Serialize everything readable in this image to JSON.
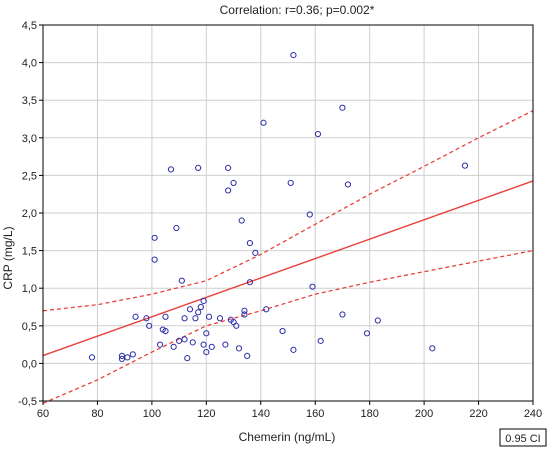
{
  "chart_data": {
    "type": "scatter",
    "title": "Correlation:  r=0.36; p=0.002*",
    "xlabel": "Chemerin  (ng/mL)",
    "ylabel": "CRP (mg/L)",
    "xlim": [
      60,
      240
    ],
    "ylim": [
      -0.5,
      4.5
    ],
    "x_ticks": [
      60,
      80,
      100,
      120,
      140,
      160,
      180,
      200,
      220,
      240
    ],
    "y_ticks": [
      -0.5,
      0.0,
      0.5,
      1.0,
      1.5,
      2.0,
      2.5,
      3.0,
      3.5,
      4.0,
      4.5
    ],
    "x_tick_labels": [
      "60",
      "80",
      "100",
      "120",
      "140",
      "160",
      "180",
      "200",
      "220",
      "240"
    ],
    "y_tick_labels": [
      "-0,5",
      "0,0",
      "0,5",
      "1,0",
      "1,5",
      "2,0",
      "2,5",
      "3,0",
      "3,5",
      "4,0",
      "4,5"
    ],
    "grid": true,
    "legend": "0.95 CI",
    "colors": {
      "points": "#2b2fa8",
      "fit": "#e8413c",
      "grid": "#cfcfcf",
      "frame": "#000000"
    },
    "regression": {
      "intercept": -0.67,
      "slope": 0.0129
    },
    "confidence_band": {
      "x": [
        60,
        80,
        100,
        120,
        140,
        160,
        180,
        200,
        220,
        240
      ],
      "upper": [
        0.7,
        0.78,
        0.92,
        1.1,
        1.45,
        1.85,
        2.25,
        2.62,
        3.0,
        3.36
      ],
      "lower": [
        -0.53,
        -0.22,
        0.15,
        0.5,
        0.7,
        0.92,
        1.08,
        1.22,
        1.36,
        1.5
      ]
    },
    "points": [
      {
        "x": 78,
        "y": 0.08
      },
      {
        "x": 89,
        "y": 0.1
      },
      {
        "x": 89,
        "y": 0.06
      },
      {
        "x": 91,
        "y": 0.08
      },
      {
        "x": 93,
        "y": 0.12
      },
      {
        "x": 94,
        "y": 0.62
      },
      {
        "x": 98,
        "y": 0.6
      },
      {
        "x": 99,
        "y": 0.5
      },
      {
        "x": 101,
        "y": 1.38
      },
      {
        "x": 101,
        "y": 1.67
      },
      {
        "x": 103,
        "y": 0.25
      },
      {
        "x": 104,
        "y": 0.45
      },
      {
        "x": 105,
        "y": 0.43
      },
      {
        "x": 105,
        "y": 0.62
      },
      {
        "x": 107,
        "y": 2.58
      },
      {
        "x": 108,
        "y": 0.22
      },
      {
        "x": 109,
        "y": 1.8
      },
      {
        "x": 110,
        "y": 0.3
      },
      {
        "x": 111,
        "y": 1.1
      },
      {
        "x": 112,
        "y": 0.32
      },
      {
        "x": 112,
        "y": 0.6
      },
      {
        "x": 113,
        "y": 0.07
      },
      {
        "x": 114,
        "y": 0.72
      },
      {
        "x": 115,
        "y": 0.28
      },
      {
        "x": 116,
        "y": 0.6
      },
      {
        "x": 117,
        "y": 2.6
      },
      {
        "x": 117,
        "y": 0.68
      },
      {
        "x": 118,
        "y": 0.75
      },
      {
        "x": 119,
        "y": 0.83
      },
      {
        "x": 119,
        "y": 0.25
      },
      {
        "x": 120,
        "y": 0.4
      },
      {
        "x": 120,
        "y": 0.15
      },
      {
        "x": 121,
        "y": 0.62
      },
      {
        "x": 122,
        "y": 0.22
      },
      {
        "x": 125,
        "y": 0.6
      },
      {
        "x": 127,
        "y": 0.25
      },
      {
        "x": 128,
        "y": 2.6
      },
      {
        "x": 128,
        "y": 2.3
      },
      {
        "x": 129,
        "y": 0.58
      },
      {
        "x": 130,
        "y": 2.4
      },
      {
        "x": 130,
        "y": 0.55
      },
      {
        "x": 131,
        "y": 0.5
      },
      {
        "x": 132,
        "y": 0.2
      },
      {
        "x": 133,
        "y": 1.9
      },
      {
        "x": 134,
        "y": 0.7
      },
      {
        "x": 134,
        "y": 0.65
      },
      {
        "x": 135,
        "y": 0.1
      },
      {
        "x": 136,
        "y": 1.08
      },
      {
        "x": 136,
        "y": 1.6
      },
      {
        "x": 138,
        "y": 1.47
      },
      {
        "x": 141,
        "y": 3.2
      },
      {
        "x": 142,
        "y": 0.72
      },
      {
        "x": 148,
        "y": 0.43
      },
      {
        "x": 151,
        "y": 2.4
      },
      {
        "x": 152,
        "y": 4.1
      },
      {
        "x": 152,
        "y": 0.18
      },
      {
        "x": 158,
        "y": 1.98
      },
      {
        "x": 159,
        "y": 1.02
      },
      {
        "x": 161,
        "y": 3.05
      },
      {
        "x": 162,
        "y": 0.3
      },
      {
        "x": 170,
        "y": 3.4
      },
      {
        "x": 170,
        "y": 0.65
      },
      {
        "x": 172,
        "y": 2.38
      },
      {
        "x": 179,
        "y": 0.4
      },
      {
        "x": 183,
        "y": 0.57
      },
      {
        "x": 203,
        "y": 0.2
      },
      {
        "x": 215,
        "y": 2.63
      }
    ]
  }
}
